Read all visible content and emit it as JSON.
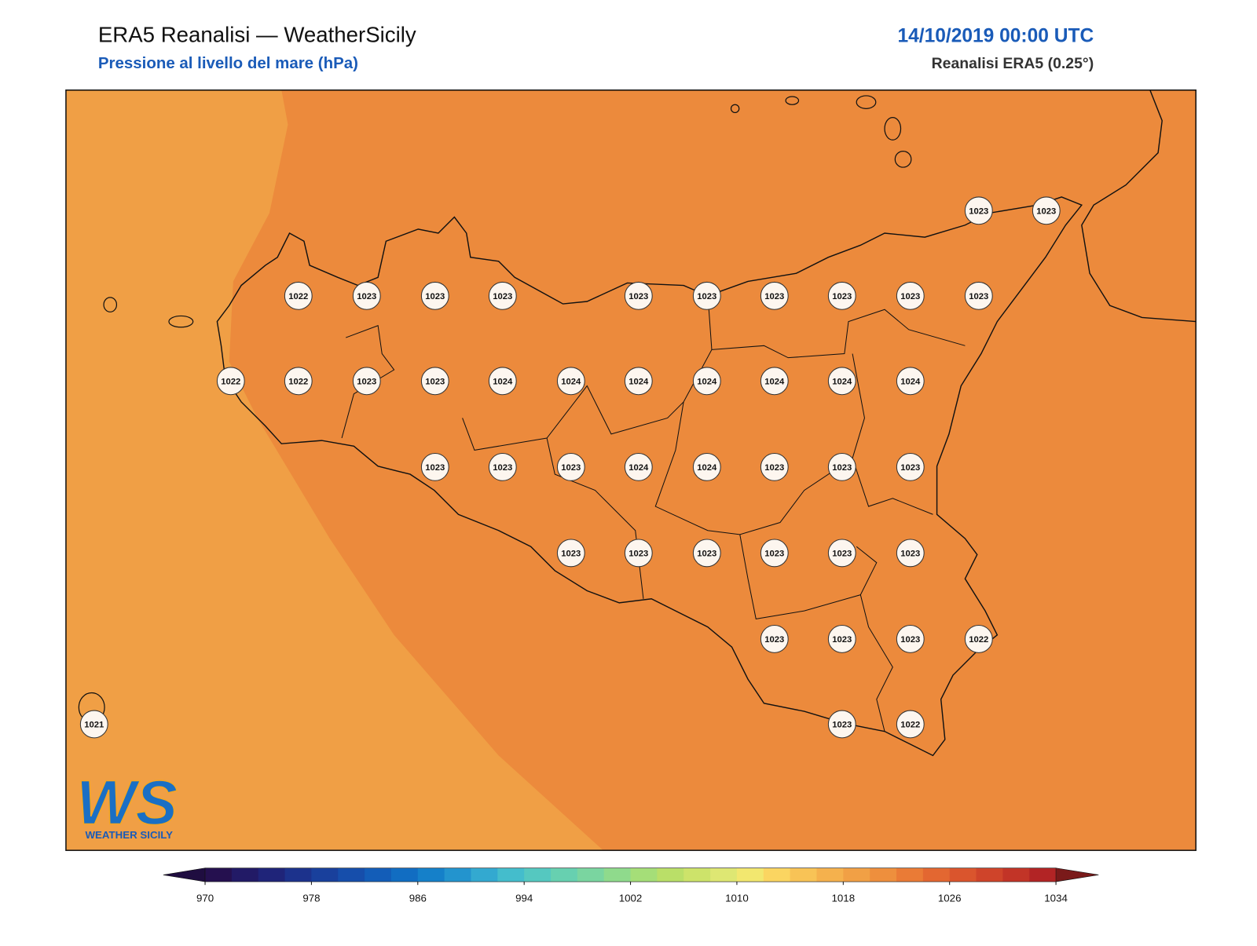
{
  "header": {
    "title": "ERA5 Reanalisi — WeatherSicily",
    "subtitle": "Pressione al livello del mare (hPa)",
    "datetime": "14/10/2019 00:00 UTC",
    "source": "Reanalisi ERA5 (0.25°)"
  },
  "stations": [
    1023,
    1023,
    1022,
    1023,
    1023,
    1023,
    1023,
    1023,
    1023,
    1023,
    1023,
    1023,
    1022,
    1022,
    1023,
    1023,
    1024,
    1024,
    1024,
    1024,
    1024,
    1024,
    1024,
    1023,
    1023,
    1023,
    1024,
    1024,
    1023,
    1023,
    1023,
    1023,
    1023,
    1023,
    1023,
    1023,
    1023,
    1023,
    1023,
    1023,
    1022,
    1021,
    1023,
    1022
  ],
  "colorbar": {
    "range": [
      970,
      1034
    ],
    "ticks": [
      970,
      978,
      986,
      994,
      1002,
      1010,
      1018,
      1026,
      1034
    ],
    "colors": [
      "#25104f",
      "#221a66",
      "#1f2479",
      "#1c328c",
      "#19409c",
      "#164eab",
      "#135db8",
      "#116dc2",
      "#1580c9",
      "#2394ce",
      "#33a9d0",
      "#44bdcc",
      "#55c8c0",
      "#67d0b0",
      "#7ad5a0",
      "#8fda8c",
      "#a5de78",
      "#badf68",
      "#cde36a",
      "#dee773",
      "#f2e76f",
      "#fbd561",
      "#f8c356",
      "#f5b14d",
      "#f1a045",
      "#ee8f3d",
      "#ea7b36",
      "#e36731",
      "#da552d",
      "#cf442a",
      "#c23427",
      "#b22425"
    ],
    "under_color": "#1f0d40",
    "over_color": "#7a1a1a"
  },
  "logo": {
    "mark": "WS",
    "text": "WEATHER SICILY"
  }
}
